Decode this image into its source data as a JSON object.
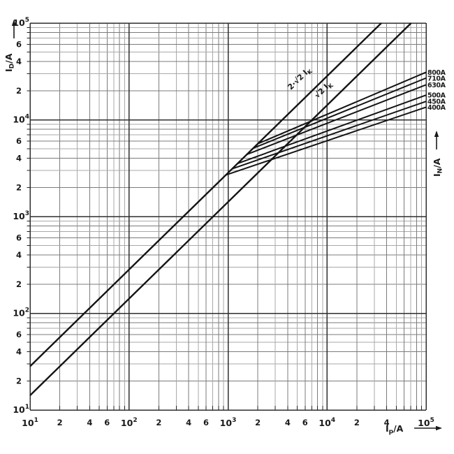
{
  "figure": {
    "background": "#ffffff",
    "curve_color": "#141414",
    "grid_decade_color": "#2e2e2e",
    "grid_even_minor_color": "#7b7b7b",
    "grid_odd_minor_color": "#a9a9a9"
  },
  "axes": {
    "x": {
      "title": {
        "base": "I",
        "sub": "p",
        "rest": "/A",
        "arrow": "right-arrow-icon"
      },
      "scale": "log",
      "decade_exps": [
        1,
        2,
        3,
        4,
        5
      ],
      "minor_labels": [
        {
          "decade": 1,
          "values": [
            2,
            4,
            6
          ]
        },
        {
          "decade": 2,
          "values": [
            2,
            4,
            6
          ]
        },
        {
          "decade": 3,
          "values": [
            2,
            4,
            6
          ]
        },
        {
          "decade": 4,
          "values": [
            2,
            4
          ]
        }
      ]
    },
    "y": {
      "title": {
        "base": "I",
        "sub": "D",
        "rest": "/A",
        "arrow": "up-arrow-icon"
      },
      "scale": "log",
      "decade_exps": [
        1,
        2,
        3,
        4,
        5
      ],
      "minor_labels": [
        {
          "decade": 1,
          "values": [
            2,
            4,
            6
          ]
        },
        {
          "decade": 2,
          "values": [
            2,
            4,
            6
          ]
        },
        {
          "decade": 3,
          "values": [
            2,
            4,
            6
          ]
        },
        {
          "decade": 4,
          "values": [
            2,
            4,
            6
          ]
        }
      ]
    },
    "right": {
      "title": {
        "base": "I",
        "sub": "N",
        "rest": "/A",
        "arrow": "up-arrow-icon"
      }
    }
  },
  "chart_data": {
    "type": "line",
    "title": "",
    "xlabel": "Ip/A",
    "ylabel": "ID/A",
    "right_label": "IN/A",
    "x_scale": "log",
    "y_scale": "log",
    "xlim": [
      10,
      100000
    ],
    "ylim": [
      10,
      100000
    ],
    "grid": true,
    "reference_lines": [
      {
        "label_pre": "2·√2 I",
        "label_sub": "K",
        "factor": 2.828,
        "points": [
          [
            10,
            28.28
          ],
          [
            35355,
            100000
          ]
        ]
      },
      {
        "label_pre": "√2 I",
        "label_sub": "K",
        "factor": 1.414,
        "points": [
          [
            10,
            14.14
          ],
          [
            70711,
            100000
          ]
        ]
      }
    ],
    "series": [
      {
        "name": "800A",
        "points": [
          [
            2000,
            5657
          ],
          [
            100000,
            31000
          ]
        ]
      },
      {
        "name": "710A",
        "points": [
          [
            1800,
            5091
          ],
          [
            100000,
            27000
          ]
        ]
      },
      {
        "name": "630A",
        "points": [
          [
            1550,
            4384
          ],
          [
            100000,
            23000
          ]
        ]
      },
      {
        "name": "500A",
        "points": [
          [
            1250,
            3536
          ],
          [
            100000,
            18000
          ]
        ]
      },
      {
        "name": "450A",
        "points": [
          [
            1100,
            3111
          ],
          [
            100000,
            15500
          ]
        ]
      },
      {
        "name": "400A",
        "points": [
          [
            950,
            2687
          ],
          [
            100000,
            13500
          ]
        ]
      }
    ]
  }
}
